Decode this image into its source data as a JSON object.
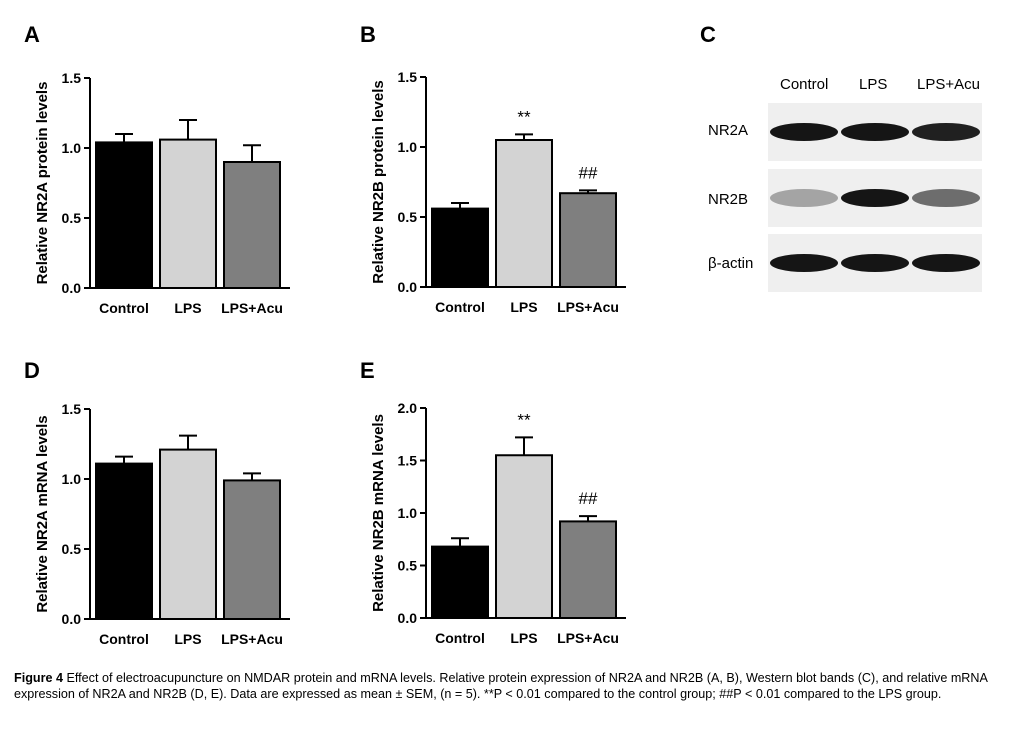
{
  "panels": {
    "A": {
      "letter": "A"
    },
    "B": {
      "letter": "B"
    },
    "C": {
      "letter": "C"
    },
    "D": {
      "letter": "D"
    },
    "E": {
      "letter": "E"
    }
  },
  "chart_data": [
    {
      "id": "A",
      "type": "bar",
      "categories": [
        "Control",
        "LPS",
        "LPS+Acu"
      ],
      "values": [
        1.04,
        1.06,
        0.9
      ],
      "errors": [
        0.06,
        0.14,
        0.12
      ],
      "colors": [
        "#000000",
        "#d3d3d3",
        "#7f7f7f"
      ],
      "annotations": [
        "",
        "",
        ""
      ],
      "ylabel": "Relative NR2A protein levels",
      "ylim": [
        0,
        1.5
      ],
      "yticks": [
        "0.0",
        "0.5",
        "1.0",
        "1.5"
      ],
      "ytick_values": [
        0,
        0.5,
        1.0,
        1.5
      ]
    },
    {
      "id": "B",
      "type": "bar",
      "categories": [
        "Control",
        "LPS",
        "LPS+Acu"
      ],
      "values": [
        0.56,
        1.05,
        0.67
      ],
      "errors": [
        0.04,
        0.04,
        0.02
      ],
      "colors": [
        "#000000",
        "#d3d3d3",
        "#7f7f7f"
      ],
      "annotations": [
        "",
        "**",
        "##"
      ],
      "ylabel": "Relative NR2B protein levels",
      "ylim": [
        0,
        1.5
      ],
      "yticks": [
        "0.0",
        "0.5",
        "1.0",
        "1.5"
      ],
      "ytick_values": [
        0,
        0.5,
        1.0,
        1.5
      ]
    },
    {
      "id": "D",
      "type": "bar",
      "categories": [
        "Control",
        "LPS",
        "LPS+Acu"
      ],
      "values": [
        1.11,
        1.21,
        0.99
      ],
      "errors": [
        0.05,
        0.1,
        0.05
      ],
      "colors": [
        "#000000",
        "#d3d3d3",
        "#7f7f7f"
      ],
      "annotations": [
        "",
        "",
        ""
      ],
      "ylabel": "Relative NR2A mRNA levels",
      "ylim": [
        0,
        1.5
      ],
      "yticks": [
        "0.0",
        "0.5",
        "1.0",
        "1.5"
      ],
      "ytick_values": [
        0,
        0.5,
        1.0,
        1.5
      ]
    },
    {
      "id": "E",
      "type": "bar",
      "categories": [
        "Control",
        "LPS",
        "LPS+Acu"
      ],
      "values": [
        0.68,
        1.55,
        0.92
      ],
      "errors": [
        0.08,
        0.17,
        0.05
      ],
      "colors": [
        "#000000",
        "#d3d3d3",
        "#7f7f7f"
      ],
      "annotations": [
        "",
        "**",
        "##"
      ],
      "ylabel": "Relative NR2B mRNA levels",
      "ylim": [
        0,
        2.0
      ],
      "yticks": [
        "0.0",
        "0.5",
        "1.0",
        "1.5",
        "2.0"
      ],
      "ytick_values": [
        0,
        0.5,
        1.0,
        1.5,
        2.0
      ]
    }
  ],
  "blot": {
    "columns": [
      "Control",
      "LPS",
      "LPS+Acu"
    ],
    "rows": [
      {
        "label": "NR2A",
        "intensity": [
          0.95,
          0.95,
          0.9
        ]
      },
      {
        "label": "NR2B",
        "intensity": [
          0.3,
          0.95,
          0.55
        ]
      },
      {
        "label": "β-actin",
        "intensity": [
          0.95,
          0.95,
          0.95
        ]
      }
    ]
  },
  "caption": {
    "lead": "Figure 4",
    "text": "Effect of electroacupuncture on NMDAR protein and mRNA levels. Relative protein expression of NR2A and NR2B (A, B), Western blot bands (C), and relative mRNA expression of NR2A and NR2B (D, E). Data are expressed as mean ± SEM, (n = 5). **P < 0.01 compared to the control group; ##P < 0.01 compared to the LPS group."
  }
}
